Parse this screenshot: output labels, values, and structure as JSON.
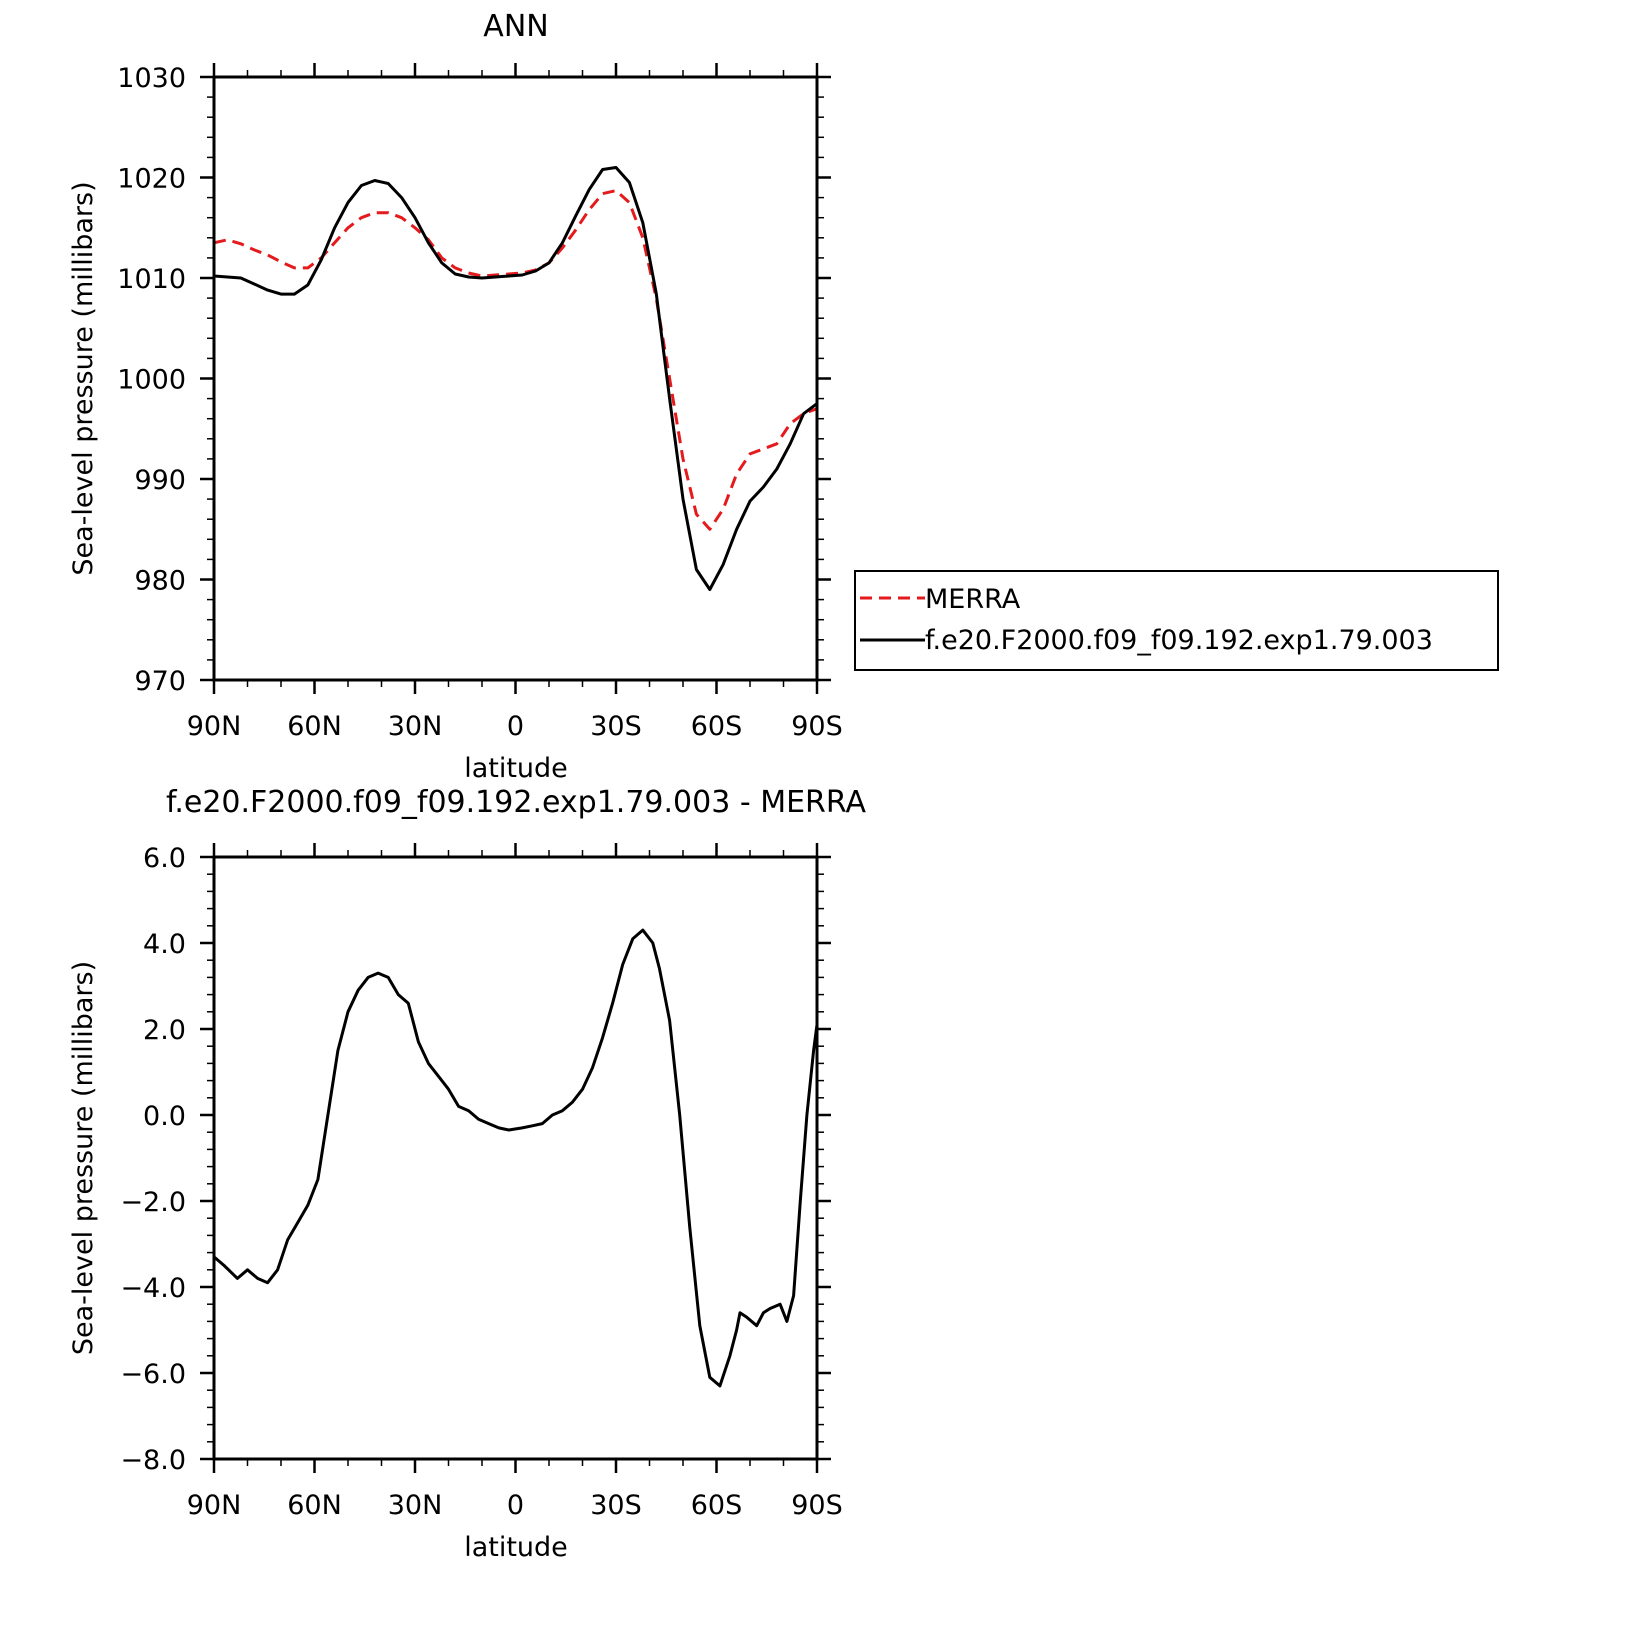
{
  "chart_data": [
    {
      "type": "line",
      "title": "ANN",
      "xlabel": "latitude",
      "ylabel": "Sea-level pressure (millibars)",
      "xlim": [
        90,
        -90
      ],
      "ylim": [
        970,
        1030
      ],
      "yticks": [
        {
          "value": 1030,
          "label": "1030"
        },
        {
          "value": 1020,
          "label": "1020"
        },
        {
          "value": 1010,
          "label": "1010"
        },
        {
          "value": 1000,
          "label": "1000"
        },
        {
          "value": 990,
          "label": "990"
        },
        {
          "value": 980,
          "label": "980"
        },
        {
          "value": 970,
          "label": "970"
        }
      ],
      "xticks": [
        {
          "value": 90,
          "label": "90N"
        },
        {
          "value": 60,
          "label": "60N"
        },
        {
          "value": 30,
          "label": "30N"
        },
        {
          "value": 0,
          "label": "0"
        },
        {
          "value": -30,
          "label": "30S"
        },
        {
          "value": -60,
          "label": "60S"
        },
        {
          "value": -90,
          "label": "90S"
        }
      ],
      "grid": false,
      "legend": {
        "position": "right"
      },
      "series": [
        {
          "name": "MERRA",
          "color": "#e41a1c",
          "dash": "dashed",
          "x": [
            90,
            86,
            82,
            78,
            74,
            70,
            66,
            62,
            58,
            54,
            50,
            46,
            42,
            38,
            34,
            30,
            26,
            22,
            18,
            14,
            10,
            6,
            2,
            -2,
            -6,
            -10,
            -14,
            -18,
            -22,
            -26,
            -30,
            -34,
            -38,
            -42,
            -46,
            -50,
            -54,
            -58,
            -62,
            -66,
            -70,
            -74,
            -78,
            -82,
            -86,
            -90
          ],
          "y": [
            1013.5,
            1013.8,
            1013.4,
            1012.8,
            1012.3,
            1011.6,
            1011.0,
            1011.0,
            1012.0,
            1013.5,
            1015.0,
            1016.0,
            1016.5,
            1016.5,
            1016.0,
            1015.0,
            1013.8,
            1012.0,
            1011.0,
            1010.5,
            1010.2,
            1010.3,
            1010.4,
            1010.5,
            1010.8,
            1011.5,
            1013.0,
            1014.8,
            1016.8,
            1018.4,
            1018.7,
            1017.5,
            1014.0,
            1008.0,
            1000.0,
            992.0,
            986.5,
            985.0,
            987.0,
            990.5,
            992.5,
            993.0,
            993.5,
            995.5,
            996.5,
            997.0
          ]
        },
        {
          "name": "f.e20.F2000.f09_f09.192.exp1.79.003",
          "color": "#000000",
          "dash": "solid",
          "x": [
            90,
            86,
            82,
            78,
            74,
            70,
            66,
            62,
            58,
            54,
            50,
            46,
            42,
            38,
            34,
            30,
            26,
            22,
            18,
            14,
            10,
            6,
            2,
            -2,
            -6,
            -10,
            -14,
            -18,
            -22,
            -26,
            -30,
            -34,
            -38,
            -42,
            -46,
            -50,
            -54,
            -58,
            -62,
            -66,
            -70,
            -74,
            -78,
            -82,
            -86,
            -90
          ],
          "y": [
            1010.2,
            1010.1,
            1010.0,
            1009.4,
            1008.8,
            1008.4,
            1008.4,
            1009.3,
            1011.8,
            1015.0,
            1017.5,
            1019.2,
            1019.7,
            1019.4,
            1018.0,
            1016.0,
            1013.5,
            1011.5,
            1010.4,
            1010.1,
            1010.0,
            1010.1,
            1010.2,
            1010.3,
            1010.7,
            1011.5,
            1013.5,
            1016.2,
            1018.8,
            1020.8,
            1021.0,
            1019.5,
            1015.5,
            1008.5,
            998.0,
            988.0,
            981.0,
            979.0,
            981.5,
            985.0,
            987.8,
            989.2,
            991.0,
            993.5,
            996.5,
            997.5
          ]
        }
      ]
    },
    {
      "type": "line",
      "title": "f.e20.F2000.f09_f09.192.exp1.79.003 - MERRA",
      "xlabel": "latitude",
      "ylabel": "Sea-level pressure (millibars)",
      "xlim": [
        90,
        -90
      ],
      "ylim": [
        -8,
        6
      ],
      "yticks": [
        {
          "value": 6,
          "label": "6.0"
        },
        {
          "value": 4,
          "label": "4.0"
        },
        {
          "value": 2,
          "label": "2.0"
        },
        {
          "value": 0,
          "label": "0.0"
        },
        {
          "value": -2,
          "label": "−2.0"
        },
        {
          "value": -4,
          "label": "−4.0"
        },
        {
          "value": -6,
          "label": "−6.0"
        },
        {
          "value": -8,
          "label": "−8.0"
        }
      ],
      "xticks": [
        {
          "value": 90,
          "label": "90N"
        },
        {
          "value": 60,
          "label": "60N"
        },
        {
          "value": 30,
          "label": "30N"
        },
        {
          "value": 0,
          "label": "0"
        },
        {
          "value": -30,
          "label": "30S"
        },
        {
          "value": -60,
          "label": "60S"
        },
        {
          "value": -90,
          "label": "90S"
        }
      ],
      "grid": false,
      "series": [
        {
          "color": "#000000",
          "dash": "solid",
          "x": [
            90,
            87,
            83,
            80,
            77,
            74,
            71,
            68,
            65,
            62,
            59,
            56,
            53,
            50,
            47,
            44,
            41,
            38,
            35,
            32,
            29,
            26,
            23,
            20,
            17,
            14,
            11,
            8,
            5,
            2,
            -2,
            -5,
            -8,
            -11,
            -14,
            -17,
            -20,
            -23,
            -26,
            -29,
            -32,
            -35,
            -38,
            -41,
            -43,
            -46,
            -49,
            -52,
            -55,
            -58,
            -61,
            -64,
            -66,
            -67,
            -69,
            -72,
            -74,
            -76,
            -79,
            -81,
            -83,
            -85,
            -87,
            -89,
            -90
          ],
          "y": [
            -3.3,
            -3.5,
            -3.8,
            -3.6,
            -3.8,
            -3.9,
            -3.6,
            -2.9,
            -2.5,
            -2.1,
            -1.5,
            0.0,
            1.5,
            2.4,
            2.9,
            3.2,
            3.3,
            3.2,
            2.8,
            2.6,
            1.7,
            1.2,
            0.9,
            0.6,
            0.2,
            0.1,
            -0.1,
            -0.2,
            -0.3,
            -0.35,
            -0.3,
            -0.25,
            -0.2,
            0.0,
            0.1,
            0.3,
            0.6,
            1.1,
            1.8,
            2.6,
            3.5,
            4.1,
            4.3,
            4.0,
            3.4,
            2.2,
            0.0,
            -2.6,
            -4.9,
            -6.1,
            -6.3,
            -5.6,
            -5.0,
            -4.6,
            -4.7,
            -4.9,
            -4.6,
            -4.5,
            -4.4,
            -4.8,
            -4.2,
            -2.0,
            0.0,
            1.5,
            2.1
          ]
        }
      ]
    }
  ]
}
